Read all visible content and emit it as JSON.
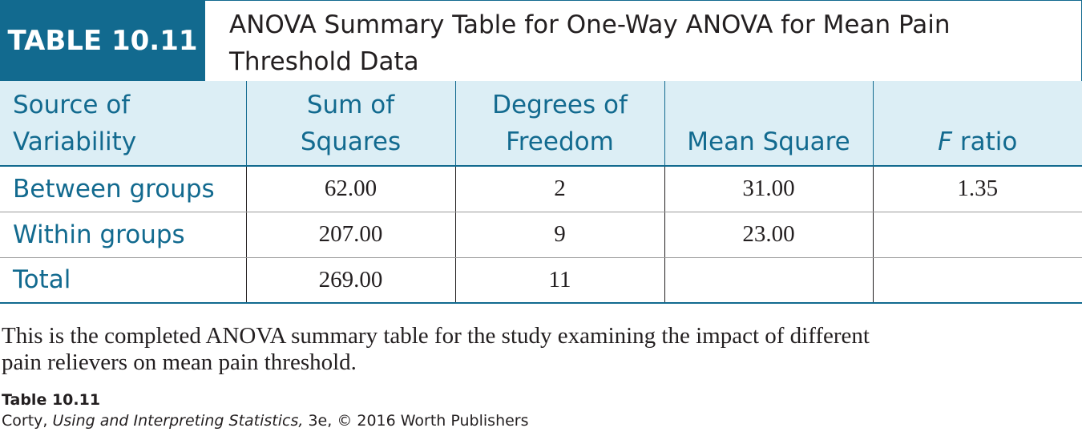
{
  "table": {
    "badge": "TABLE 10.11",
    "title_line1": "ANOVA Summary Table for One-Way ANOVA for Mean Pain",
    "title_line2": "Threshold Data",
    "columns": {
      "source_l1": "Source of",
      "source_l2": "Variability",
      "ss_l1": "Sum of",
      "ss_l2": "Squares",
      "df_l1": "Degrees of",
      "df_l2": "Freedom",
      "ms": "Mean Square",
      "f_italic": "F",
      "f_rest": " ratio"
    },
    "rows": [
      {
        "source": "Between groups",
        "ss": "62.00",
        "df": "2",
        "ms": "31.00",
        "f": "1.35"
      },
      {
        "source": "Within groups",
        "ss": "207.00",
        "df": "9",
        "ms": "23.00",
        "f": ""
      },
      {
        "source": "Total",
        "ss": "269.00",
        "df": "11",
        "ms": "",
        "f": ""
      }
    ]
  },
  "caption": {
    "line1": "This is the completed ANOVA summary table for the study examining the impact of different",
    "line2": "pain relievers on mean pain threshold."
  },
  "credit": {
    "label": "Table 10.11",
    "author": "Corty, ",
    "book": "Using and Interpreting Statistics,",
    "rest": " 3e, © 2016 Worth Publishers"
  },
  "colors": {
    "accent": "#126a8f",
    "header_fill": "#dceef5",
    "text": "#231f20"
  }
}
